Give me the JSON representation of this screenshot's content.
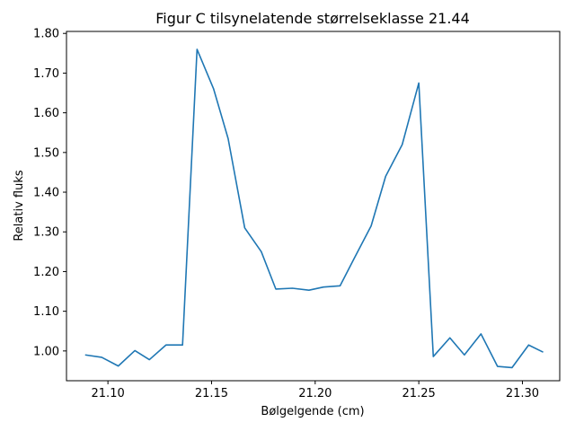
{
  "chart_data": {
    "type": "line",
    "title": "Figur C tilsynelatende størrelseklasse 21.44",
    "xlabel": "Bølgelgende (cm)",
    "ylabel": "Relativ fluks",
    "xlim": [
      21.08,
      21.318
    ],
    "ylim": [
      0.925,
      1.805
    ],
    "grid": false,
    "line_color": "#1f77b4",
    "x_ticks": [
      {
        "value": 21.1,
        "label": "21.10"
      },
      {
        "value": 21.15,
        "label": "21.15"
      },
      {
        "value": 21.2,
        "label": "21.20"
      },
      {
        "value": 21.25,
        "label": "21.25"
      },
      {
        "value": 21.3,
        "label": "21.30"
      }
    ],
    "y_ticks": [
      {
        "value": 1.0,
        "label": "1.00"
      },
      {
        "value": 1.1,
        "label": "1.10"
      },
      {
        "value": 1.2,
        "label": "1.20"
      },
      {
        "value": 1.3,
        "label": "1.30"
      },
      {
        "value": 1.4,
        "label": "1.40"
      },
      {
        "value": 1.5,
        "label": "1.50"
      },
      {
        "value": 1.6,
        "label": "1.60"
      },
      {
        "value": 1.7,
        "label": "1.70"
      },
      {
        "value": 1.8,
        "label": "1.80"
      }
    ],
    "series": [
      {
        "x": [
          21.089,
          21.097,
          21.105,
          21.113,
          21.12,
          21.128,
          21.136,
          21.143,
          21.151,
          21.158,
          21.166,
          21.174,
          21.181,
          21.189,
          21.197,
          21.204,
          21.212,
          21.219,
          21.227,
          21.234,
          21.242,
          21.25,
          21.257,
          21.265,
          21.272,
          21.28,
          21.288,
          21.295,
          21.303,
          21.31
        ],
        "y": [
          0.99,
          0.984,
          0.962,
          1.001,
          0.978,
          1.015,
          1.015,
          1.76,
          1.66,
          1.535,
          1.31,
          1.25,
          1.156,
          1.158,
          1.153,
          1.161,
          1.164,
          1.235,
          1.315,
          1.44,
          1.52,
          1.675,
          0.986,
          1.033,
          0.99,
          1.043,
          0.961,
          0.958,
          1.015,
          0.997
        ]
      }
    ]
  }
}
